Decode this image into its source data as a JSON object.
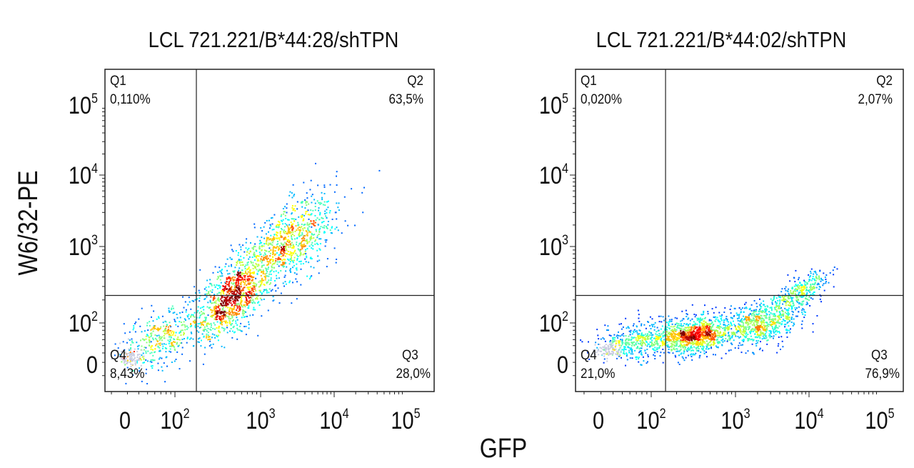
{
  "chart_data": [
    {
      "type": "scatter",
      "title": "LCL 721.221/B*44:28/shTPN",
      "xlabel": "GFP",
      "ylabel": "W6/32-PE",
      "axis_scale": "biexponential (values as log10 decades; 0 shown below 10^2)",
      "x_ticks": [
        {
          "label": "0",
          "base": "0",
          "exp": ""
        },
        {
          "label": "10^2",
          "base": "10",
          "exp": "2"
        },
        {
          "label": "10^3",
          "base": "10",
          "exp": "3"
        },
        {
          "label": "10^4",
          "base": "10",
          "exp": "4"
        },
        {
          "label": "10^5",
          "base": "10",
          "exp": "5"
        }
      ],
      "y_ticks": [
        {
          "label": "0",
          "base": "0",
          "exp": ""
        },
        {
          "label": "10^2",
          "base": "10",
          "exp": "2"
        },
        {
          "label": "10^3",
          "base": "10",
          "exp": "3"
        },
        {
          "label": "10^4",
          "base": "10",
          "exp": "4"
        },
        {
          "label": "10^5",
          "base": "10",
          "exp": "5"
        }
      ],
      "gate_log10": {
        "x": 2.25,
        "y": 2.36
      },
      "quadrants": [
        {
          "name": "Q1",
          "percent": "0,110%"
        },
        {
          "name": "Q2",
          "percent": "63,5%"
        },
        {
          "name": "Q3",
          "percent": "28,0%"
        },
        {
          "name": "Q4",
          "percent": "8,43%"
        }
      ],
      "populations_log10": [
        {
          "x": 2.65,
          "y": 2.35,
          "sx": 0.22,
          "sy": 0.28,
          "rho": 0.6,
          "n": 1000
        },
        {
          "x": 3.35,
          "y": 3.05,
          "sx": 0.33,
          "sy": 0.33,
          "rho": 0.6,
          "n": 900
        },
        {
          "x": 1.85,
          "y": 1.8,
          "sx": 0.22,
          "sy": 0.2,
          "rho": 0.5,
          "n": 380
        },
        {
          "x": 1.5,
          "y": 1.55,
          "sx": 0.06,
          "sy": 0.06,
          "rho": 0,
          "n": 90,
          "faint": true
        }
      ]
    },
    {
      "type": "scatter",
      "title": "LCL 721.221/B*44:02/shTPN",
      "xlabel": "GFP",
      "ylabel": "W6/32-PE",
      "axis_scale": "biexponential (values as log10 decades; 0 shown below 10^2)",
      "x_ticks": [
        {
          "label": "0",
          "base": "0",
          "exp": ""
        },
        {
          "label": "10^2",
          "base": "10",
          "exp": "2"
        },
        {
          "label": "10^3",
          "base": "10",
          "exp": "3"
        },
        {
          "label": "10^4",
          "base": "10",
          "exp": "4"
        },
        {
          "label": "10^5",
          "base": "10",
          "exp": "5"
        }
      ],
      "y_ticks": [
        {
          "label": "0",
          "base": "0",
          "exp": ""
        },
        {
          "label": "10^2",
          "base": "10",
          "exp": "2"
        },
        {
          "label": "10^3",
          "base": "10",
          "exp": "3"
        },
        {
          "label": "10^4",
          "base": "10",
          "exp": "4"
        },
        {
          "label": "10^5",
          "base": "10",
          "exp": "5"
        }
      ],
      "gate_log10": {
        "x": 2.17,
        "y": 2.36
      },
      "quadrants": [
        {
          "name": "Q1",
          "percent": "0,020%"
        },
        {
          "name": "Q2",
          "percent": "2,07%"
        },
        {
          "name": "Q3",
          "percent": "76,9%"
        },
        {
          "name": "Q4",
          "percent": "21,0%"
        }
      ],
      "populations_log10": [
        {
          "x": 2.5,
          "y": 1.85,
          "sx": 0.22,
          "sy": 0.12,
          "rho": 0.2,
          "n": 1000
        },
        {
          "x": 3.3,
          "y": 2.0,
          "sx": 0.3,
          "sy": 0.15,
          "rho": 0.4,
          "n": 750
        },
        {
          "x": 3.85,
          "y": 2.4,
          "sx": 0.2,
          "sy": 0.14,
          "rho": 0.7,
          "n": 320
        },
        {
          "x": 1.85,
          "y": 1.75,
          "sx": 0.2,
          "sy": 0.12,
          "rho": 0.1,
          "n": 420
        },
        {
          "x": 1.55,
          "y": 1.65,
          "sx": 0.07,
          "sy": 0.06,
          "rho": 0,
          "n": 90,
          "faint": true
        }
      ]
    }
  ],
  "shared": {
    "xlabel": "GFP",
    "ylabel": "W6/32-PE"
  }
}
